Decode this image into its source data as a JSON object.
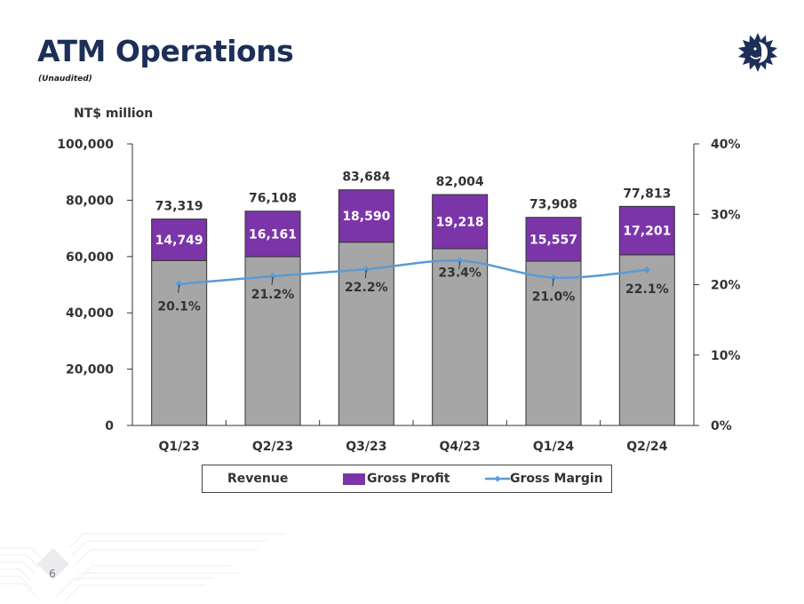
{
  "page": {
    "title": "ATM Operations",
    "subtitle": "(Unaudited)",
    "page_number": "6",
    "logo_icon": "sun-face-logo-icon"
  },
  "colors": {
    "title": "#1d2f57",
    "revenue_bar": "#a6a6a6",
    "gross_profit_bar": "#7b35a8",
    "gross_margin_line": "#5b9bd5",
    "axis": "#333333"
  },
  "chart_data": {
    "type": "bar",
    "subtype": "stacked bar with line on secondary axis",
    "title": "ATM Operations",
    "ylabel": "NT$ million",
    "xlabel": "",
    "categories": [
      "Q1/23",
      "Q2/23",
      "Q3/23",
      "Q4/23",
      "Q1/24",
      "Q2/24"
    ],
    "series": [
      {
        "name": "Revenue",
        "type": "bar",
        "axis": "left",
        "values": [
          73319,
          76108,
          83684,
          82004,
          73908,
          77813
        ],
        "labels": [
          "73,319",
          "76,108",
          "83,684",
          "82,004",
          "73,908",
          "77,813"
        ]
      },
      {
        "name": "Gross Profit",
        "type": "bar",
        "axis": "left",
        "values": [
          14749,
          16161,
          18590,
          19218,
          15557,
          17201
        ],
        "labels": [
          "14,749",
          "16,161",
          "18,590",
          "19,218",
          "15,557",
          "17,201"
        ]
      },
      {
        "name": "Gross Margin",
        "type": "line",
        "axis": "right",
        "values": [
          20.1,
          21.2,
          22.2,
          23.4,
          21.0,
          22.1
        ],
        "labels": [
          "20.1%",
          "21.2%",
          "22.2%",
          "23.4%",
          "21.0%",
          "22.1%"
        ]
      }
    ],
    "ylim": [
      0,
      100000
    ],
    "y_ticks": [
      0,
      20000,
      40000,
      60000,
      80000,
      100000
    ],
    "y_tick_labels": [
      "0",
      "20,000",
      "40,000",
      "60,000",
      "80,000",
      "100,000"
    ],
    "y2lim": [
      0,
      40
    ],
    "y2_ticks": [
      0,
      10,
      20,
      30,
      40
    ],
    "y2_tick_labels": [
      "0%",
      "10%",
      "20%",
      "30%",
      "40%"
    ],
    "grid": false,
    "legend": {
      "placement": "bottom",
      "entries": [
        "Revenue",
        "Gross Profit",
        "Gross Margin"
      ]
    }
  }
}
